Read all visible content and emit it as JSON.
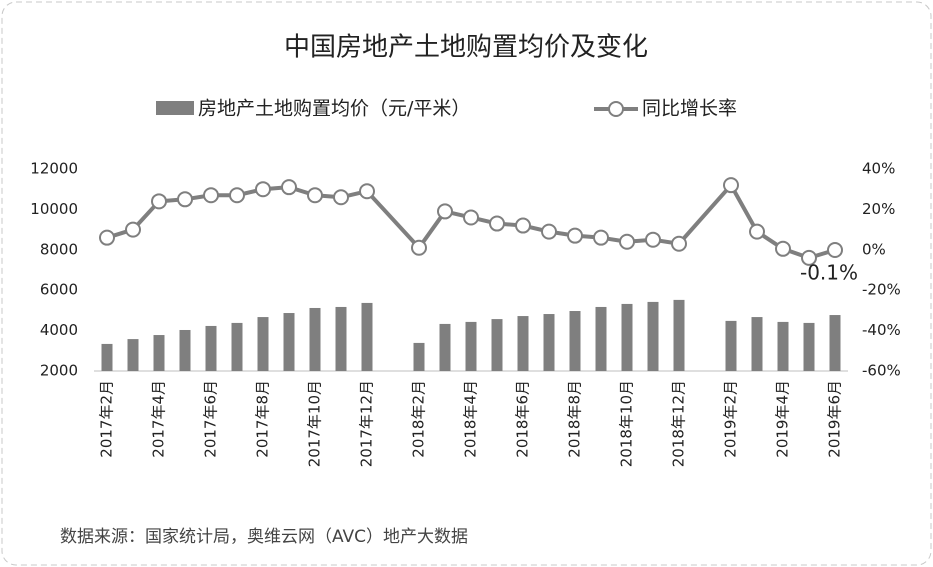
{
  "chart_data": {
    "type": "bar-line",
    "title": "中国房地产土地购置均价及变化",
    "source": "数据来源：国家统计局，奥维云网（AVC）地产大数据",
    "categories": [
      "2017年2月",
      null,
      "2017年4月",
      null,
      "2017年6月",
      null,
      "2017年8月",
      null,
      "2017年10月",
      null,
      "2017年12月",
      null,
      "2018年2月",
      null,
      "2018年4月",
      null,
      "2018年6月",
      null,
      "2018年8月",
      null,
      "2018年10月",
      null,
      "2018年12月",
      null,
      "2019年2月",
      null,
      "2019年4月",
      null,
      "2019年6月"
    ],
    "series": [
      {
        "name": "房地产土地购置均价（元/平米）",
        "color": "#7f7f7f",
        "type": "bar",
        "values": [
          3340,
          3580,
          3780,
          4030,
          4230,
          4380,
          4670,
          4870,
          5120,
          5170,
          5370,
          null,
          3390,
          4330,
          4430,
          4570,
          4720,
          4820,
          4970,
          5170,
          5320,
          5420,
          5520,
          null,
          4480,
          4670,
          4430,
          4380,
          4770
        ]
      },
      {
        "name": "同比增长率",
        "color": "#7f7f7f",
        "type": "line",
        "axis": "y2",
        "span_gaps": true,
        "values": [
          6,
          10,
          24,
          25,
          27,
          27,
          30,
          31,
          27,
          26,
          29,
          null,
          1,
          19,
          16,
          13,
          12,
          9,
          7,
          6,
          4,
          5,
          3,
          null,
          32,
          9,
          0.5,
          -4,
          -0.1
        ],
        "value_labels": [
          null,
          null,
          null,
          null,
          null,
          null,
          null,
          null,
          null,
          null,
          null,
          null,
          null,
          null,
          null,
          null,
          null,
          null,
          null,
          null,
          null,
          null,
          null,
          null,
          null,
          null,
          null,
          null,
          "-0.1%"
        ]
      }
    ],
    "ylim": [
      2000,
      12000
    ],
    "yticks": [
      2000,
      4000,
      6000,
      8000,
      10000,
      12000
    ],
    "y2lim": [
      -60,
      40
    ],
    "y2ticks": [
      {
        "value": -60,
        "label": "-60%"
      },
      {
        "value": -40,
        "label": "-40%"
      },
      {
        "value": -20,
        "label": "-20%"
      },
      {
        "value": 0,
        "label": "0%"
      },
      {
        "value": 20,
        "label": "20%"
      },
      {
        "value": 40,
        "label": "40%"
      }
    ]
  }
}
